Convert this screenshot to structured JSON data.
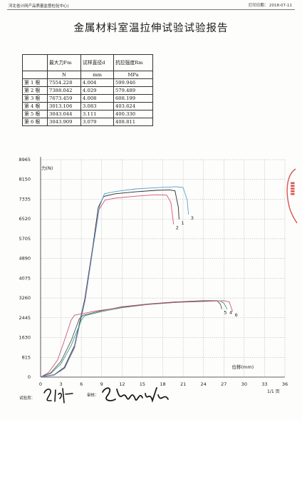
{
  "header": {
    "organization": "河北省计网产品质量监督检验中心)",
    "print_date": "打印日期： 2018-07-11"
  },
  "title": "金属材料室温拉伸试验试验报告",
  "results_table": {
    "columns": [
      "",
      "最大力Fm",
      "试样直径d",
      "抗拉强度Rm"
    ],
    "units": [
      "",
      "N",
      "mm",
      "MPa"
    ],
    "rows": [
      {
        "label": "第 1 根",
        "fm": "7554.228",
        "d": "4.004",
        "rm": "599.946"
      },
      {
        "label": "第 2 根",
        "fm": "7388.042",
        "d": "4.029",
        "rm": "579.489"
      },
      {
        "label": "第 3 根",
        "fm": "7673.459",
        "d": "4.008",
        "rm": "608.199"
      },
      {
        "label": "第 4 根",
        "fm": "3013.106",
        "d": "3.083",
        "rm": "403.624"
      },
      {
        "label": "第 5 根",
        "fm": "3043.044",
        "d": "3.111",
        "rm": "400.330"
      },
      {
        "label": "第 6 根",
        "fm": "3043.909",
        "d": "3.079",
        "rm": "408.811"
      }
    ]
  },
  "chart_data": {
    "type": "line",
    "ylabel": "力(N)",
    "xlabel": "位移(mm)",
    "xlim": [
      0,
      36
    ],
    "ylim": [
      0,
      8965
    ],
    "x_ticks": [
      0,
      3,
      6,
      9,
      12,
      15,
      18,
      21,
      24,
      27,
      30,
      33,
      36
    ],
    "y_ticks": [
      0,
      815,
      1630,
      2445,
      3260,
      4075,
      4890,
      5705,
      6520,
      7335,
      8150,
      8965
    ],
    "grid": true,
    "series": [
      {
        "name": "1",
        "color": "#2a2a2a",
        "points": [
          [
            0,
            0
          ],
          [
            2,
            100
          ],
          [
            3.5,
            400
          ],
          [
            5,
            1300
          ],
          [
            6.5,
            3200
          ],
          [
            7.7,
            5400
          ],
          [
            8.5,
            7000
          ],
          [
            9.3,
            7450
          ],
          [
            11,
            7560
          ],
          [
            14,
            7640
          ],
          [
            17,
            7700
          ],
          [
            19,
            7720
          ],
          [
            19.8,
            7680
          ],
          [
            20.3,
            7000
          ],
          [
            20.4,
            6500
          ]
        ]
      },
      {
        "name": "2",
        "color": "#d9507a",
        "points": [
          [
            0,
            0
          ],
          [
            2,
            100
          ],
          [
            3.5,
            350
          ],
          [
            5,
            1200
          ],
          [
            6.5,
            3100
          ],
          [
            7.7,
            5300
          ],
          [
            8.6,
            6900
          ],
          [
            9.5,
            7300
          ],
          [
            11,
            7380
          ],
          [
            14,
            7460
          ],
          [
            17,
            7520
          ],
          [
            18.6,
            7500
          ],
          [
            19.2,
            7200
          ],
          [
            19.6,
            6300
          ]
        ]
      },
      {
        "name": "3",
        "color": "#5aa0c8",
        "points": [
          [
            0,
            0
          ],
          [
            2,
            80
          ],
          [
            3.6,
            380
          ],
          [
            5,
            1250
          ],
          [
            6.6,
            3200
          ],
          [
            7.8,
            5450
          ],
          [
            8.7,
            7050
          ],
          [
            9.4,
            7560
          ],
          [
            11,
            7650
          ],
          [
            14,
            7760
          ],
          [
            17,
            7810
          ],
          [
            20,
            7850
          ],
          [
            21,
            7820
          ],
          [
            21.6,
            7300
          ],
          [
            21.8,
            6700
          ]
        ]
      },
      {
        "name": "4",
        "color": "#3a9a8a",
        "points": [
          [
            0,
            0
          ],
          [
            1.5,
            150
          ],
          [
            3,
            550
          ],
          [
            4.5,
            1300
          ],
          [
            6,
            2350
          ],
          [
            6.5,
            2530
          ],
          [
            9,
            2700
          ],
          [
            12,
            2860
          ],
          [
            16,
            3000
          ],
          [
            20,
            3080
          ],
          [
            24,
            3140
          ],
          [
            26.5,
            3140
          ],
          [
            27,
            3050
          ],
          [
            27.5,
            2800
          ]
        ]
      },
      {
        "name": "5",
        "color": "#555555",
        "points": [
          [
            0,
            0
          ],
          [
            1.5,
            180
          ],
          [
            3,
            650
          ],
          [
            4.5,
            1500
          ],
          [
            5.7,
            2400
          ],
          [
            6.3,
            2550
          ],
          [
            9,
            2740
          ],
          [
            12,
            2900
          ],
          [
            16,
            3020
          ],
          [
            20,
            3100
          ],
          [
            24,
            3150
          ],
          [
            26,
            3150
          ],
          [
            26.5,
            3000
          ],
          [
            26.7,
            2800
          ]
        ]
      },
      {
        "name": "6",
        "color": "#c85a7a",
        "points": [
          [
            0,
            0
          ],
          [
            1.2,
            200
          ],
          [
            2.5,
            700
          ],
          [
            3.5,
            1500
          ],
          [
            4.5,
            2350
          ],
          [
            5,
            2550
          ],
          [
            8,
            2720
          ],
          [
            12,
            2880
          ],
          [
            16,
            3000
          ],
          [
            20,
            3080
          ],
          [
            24,
            3120
          ],
          [
            27,
            3150
          ],
          [
            27.8,
            3100
          ],
          [
            28.3,
            2700
          ]
        ]
      }
    ]
  },
  "footer": {
    "page": "1/1 页",
    "tester_label": "试验员：",
    "reviewer_label": "审核：",
    "stamp_text": "不统计材料"
  }
}
